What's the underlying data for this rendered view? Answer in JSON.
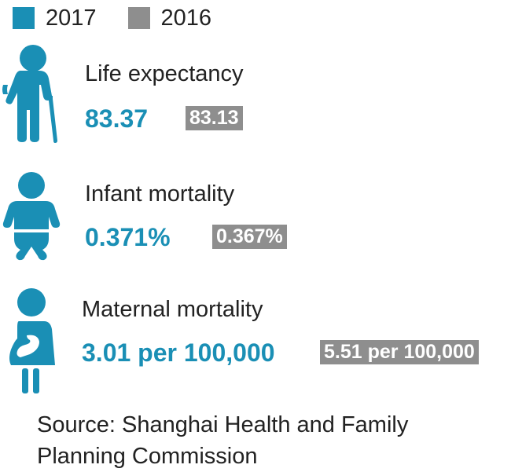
{
  "colors": {
    "year_2017": "#1a8fb5",
    "year_2016": "#8e8e8e"
  },
  "legend": [
    {
      "label": "2017"
    },
    {
      "label": "2016"
    }
  ],
  "stats": [
    {
      "icon": "elderly-person-with-cane-icon",
      "label": "Life expectancy",
      "value_2017": "83.37",
      "value_2016": "83.13"
    },
    {
      "icon": "baby-icon",
      "label": "Infant mortality",
      "value_2017": "0.371%",
      "value_2016": "0.367%"
    },
    {
      "icon": "pregnant-woman-icon",
      "label": "Maternal mortality",
      "value_2017": "3.01 per 100,000",
      "value_2016": "5.51 per 100,000"
    }
  ],
  "source": {
    "line1": "Source: Shanghai Health and Family",
    "line2": "Planning Commission"
  }
}
